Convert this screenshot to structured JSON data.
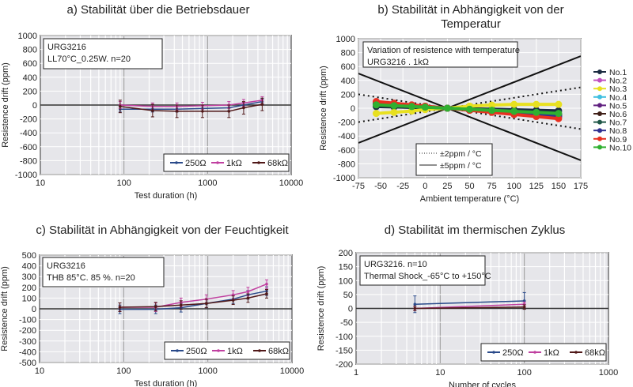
{
  "chart_data": [
    {
      "type": "line",
      "title": "a) Stabilität über die Betriebsdauer",
      "xlabel": "Test duration (h)",
      "ylabel": "Resistence drift (ppm)",
      "xscale": "log",
      "xlim": [
        10,
        10000
      ],
      "ylim": [
        -1000,
        1000
      ],
      "xticks": [
        10,
        100,
        1000,
        10000
      ],
      "yticks": [
        -1000,
        -800,
        -600,
        -400,
        -200,
        0,
        200,
        400,
        600,
        800,
        1000
      ],
      "annotation": [
        "URG3216",
        "LL70°C_0.25W. n=20"
      ],
      "legend_position": "bottom-right",
      "grid": true,
      "x": [
        90,
        220,
        430,
        870,
        1800,
        2700,
        4500
      ],
      "series": [
        {
          "name": "250Ω",
          "color": "#2a4a8a",
          "values": [
            -60,
            -60,
            -60,
            -50,
            -40,
            0,
            50
          ],
          "error": 40
        },
        {
          "name": "1kΩ",
          "color": "#c040a0",
          "values": [
            0,
            -20,
            -20,
            -10,
            0,
            30,
            70
          ],
          "error": 50
        },
        {
          "name": "68kΩ",
          "color": "#501818",
          "values": [
            -20,
            -80,
            -90,
            -90,
            -90,
            -40,
            10
          ],
          "error": 90
        }
      ]
    },
    {
      "type": "line",
      "title": "b) Stabilität in Abhängigkeit von der Temperatur",
      "xlabel": "Ambient temperature (°C)",
      "ylabel": "Resistence drift (ppm)",
      "xscale": "linear",
      "xlim": [
        -75,
        175
      ],
      "ylim": [
        -1000,
        1000
      ],
      "xticks": [
        -75,
        -50,
        -25,
        0,
        25,
        50,
        75,
        100,
        125,
        150,
        175
      ],
      "yticks": [
        -1000,
        -800,
        -600,
        -400,
        -200,
        0,
        200,
        400,
        600,
        800,
        1000
      ],
      "annotation": [
        "Variation of resistence with temperature",
        "URG3216 . 1kΩ"
      ],
      "legend_position": "right",
      "grid": true,
      "reference_lines": [
        {
          "name": "±2ppm / °C",
          "style": "dotted",
          "slope": 2,
          "origin": [
            25,
            0
          ]
        },
        {
          "name": "±5ppm / °C",
          "style": "solid",
          "slope": 5,
          "origin": [
            25,
            0
          ]
        }
      ],
      "x": [
        -55,
        -35,
        -15,
        0,
        25,
        50,
        75,
        100,
        125,
        150
      ],
      "series": [
        {
          "name": "No.1",
          "color": "#1a2a40",
          "values": [
            24,
            18,
            12,
            8,
            0,
            -8,
            -15,
            -23,
            -30,
            -38
          ]
        },
        {
          "name": "No.2",
          "color": "#c050c0",
          "values": [
            64,
            48,
            32,
            20,
            0,
            -20,
            -40,
            -60,
            -80,
            -100
          ]
        },
        {
          "name": "No.3",
          "color": "#e8e020",
          "values": [
            -75,
            -60,
            -40,
            -20,
            0,
            30,
            45,
            55,
            55,
            55
          ]
        },
        {
          "name": "No.4",
          "color": "#40c0e0",
          "values": [
            56,
            42,
            28,
            18,
            0,
            -18,
            -35,
            -53,
            -70,
            -88
          ]
        },
        {
          "name": "No.5",
          "color": "#602080",
          "values": [
            72,
            54,
            36,
            23,
            0,
            -23,
            -45,
            -68,
            -90,
            -113
          ]
        },
        {
          "name": "No.6",
          "color": "#402018",
          "values": [
            60,
            45,
            30,
            19,
            0,
            -19,
            -38,
            -56,
            -75,
            -94
          ]
        },
        {
          "name": "No.7",
          "color": "#205848",
          "values": [
            56,
            42,
            28,
            18,
            0,
            -18,
            -35,
            -53,
            -70,
            -88
          ]
        },
        {
          "name": "No.8",
          "color": "#303090",
          "values": [
            80,
            60,
            40,
            25,
            0,
            -25,
            -50,
            -75,
            -100,
            -125
          ]
        },
        {
          "name": "No.9",
          "color": "#e83020",
          "values": [
            96,
            72,
            48,
            30,
            0,
            -30,
            -60,
            -90,
            -120,
            -150
          ]
        },
        {
          "name": "No.10",
          "color": "#30b030",
          "values": [
            48,
            36,
            24,
            15,
            0,
            -15,
            -30,
            -45,
            -60,
            -75
          ]
        }
      ]
    },
    {
      "type": "line",
      "title": "c) Stabilität in Abhängigkeit von der Feuchtigkeit",
      "xlabel": "Test duration (h)",
      "ylabel": "Resistence drift (ppm)",
      "xscale": "log",
      "xlim": [
        10,
        10000
      ],
      "ylim": [
        -500,
        500
      ],
      "xticks": [
        10,
        100,
        1000,
        10000
      ],
      "yticks": [
        -500,
        -400,
        -300,
        -200,
        -100,
        0,
        100,
        200,
        300,
        400,
        500
      ],
      "annotation": [
        "URG3216",
        "THB 85°C. 85 %. n=20"
      ],
      "legend_position": "bottom-right",
      "grid": true,
      "x": [
        90,
        240,
        480,
        960,
        2000,
        3000,
        5000
      ],
      "series": [
        {
          "name": "250Ω",
          "color": "#2a4a8a",
          "values": [
            -5,
            -5,
            10,
            50,
            90,
            130,
            165
          ],
          "error": 40
        },
        {
          "name": "1kΩ",
          "color": "#c040a0",
          "values": [
            15,
            15,
            60,
            90,
            130,
            160,
            230
          ],
          "error": 40
        },
        {
          "name": "68kΩ",
          "color": "#501818",
          "values": [
            15,
            20,
            35,
            50,
            80,
            100,
            140
          ],
          "error": 40
        }
      ]
    },
    {
      "type": "line",
      "title": "d) Stabilität im thermischen Zyklus",
      "xlabel": "Number of cycles",
      "ylabel": "Resistence drift (ppm)",
      "xscale": "log",
      "xlim": [
        1,
        1000
      ],
      "ylim": [
        -200,
        200
      ],
      "xticks": [
        1,
        10,
        100,
        1000
      ],
      "yticks": [
        -200,
        -150,
        -100,
        -50,
        0,
        50,
        100,
        150,
        200
      ],
      "annotation": [
        "URG3216. n=10",
        "Thermal Shock_-65°C to +150°C"
      ],
      "legend_position": "bottom-right",
      "grid": true,
      "x": [
        5,
        100
      ],
      "series": [
        {
          "name": "250Ω",
          "color": "#2a4a8a",
          "values": [
            15,
            27
          ],
          "error": 30
        },
        {
          "name": "1kΩ",
          "color": "#c040a0",
          "values": [
            0,
            15
          ],
          "error": 8
        },
        {
          "name": "68kΩ",
          "color": "#501818",
          "values": [
            0,
            5
          ],
          "error": 8
        }
      ]
    }
  ]
}
